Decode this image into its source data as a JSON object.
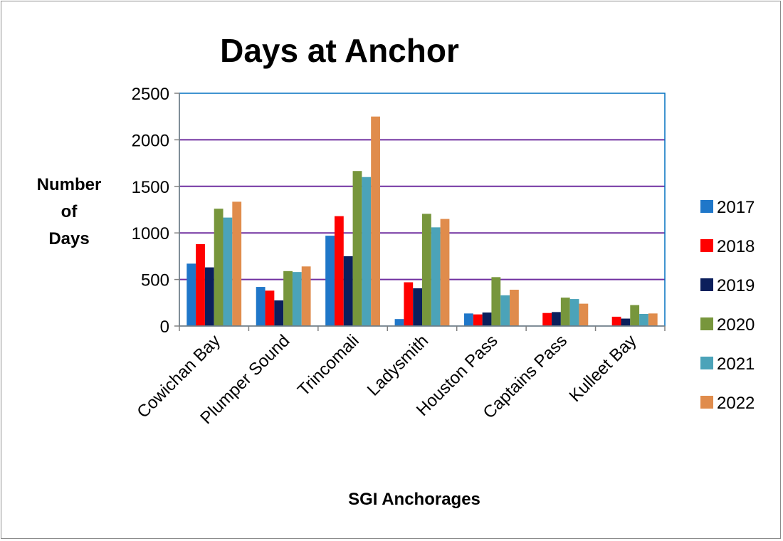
{
  "chart_data": {
    "type": "bar",
    "title": "Days at Anchor",
    "xlabel": "SGI Anchorages",
    "ylabel_lines": [
      "Number",
      "of",
      "Days"
    ],
    "ylim": [
      0,
      2500
    ],
    "yticks": [
      0,
      500,
      1000,
      1500,
      2000,
      2500
    ],
    "grid": true,
    "legend_position": "right",
    "categories": [
      "Cowichan Bay",
      "Plumper Sound",
      "Trincomali",
      "Ladysmith",
      "Houston Pass",
      "Captains Pass",
      "Kulleet Bay"
    ],
    "series": [
      {
        "name": "2017",
        "color": "#1f77c9",
        "values": [
          670,
          420,
          970,
          75,
          135,
          0,
          0
        ]
      },
      {
        "name": "2018",
        "color": "#ff0000",
        "values": [
          880,
          380,
          1180,
          470,
          125,
          140,
          100
        ]
      },
      {
        "name": "2019",
        "color": "#0b1f5c",
        "values": [
          630,
          275,
          750,
          405,
          145,
          150,
          80
        ]
      },
      {
        "name": "2020",
        "color": "#77963c",
        "values": [
          1260,
          590,
          1665,
          1205,
          525,
          305,
          225
        ]
      },
      {
        "name": "2021",
        "color": "#4ba3b9",
        "values": [
          1165,
          580,
          1600,
          1060,
          330,
          290,
          130
        ]
      },
      {
        "name": "2022",
        "color": "#e08c4c",
        "values": [
          1335,
          640,
          2250,
          1150,
          390,
          240,
          135
        ]
      }
    ]
  },
  "colors": {
    "gridline": "#7030a0",
    "plot_border": "#0070c0",
    "axis": "#808080"
  }
}
